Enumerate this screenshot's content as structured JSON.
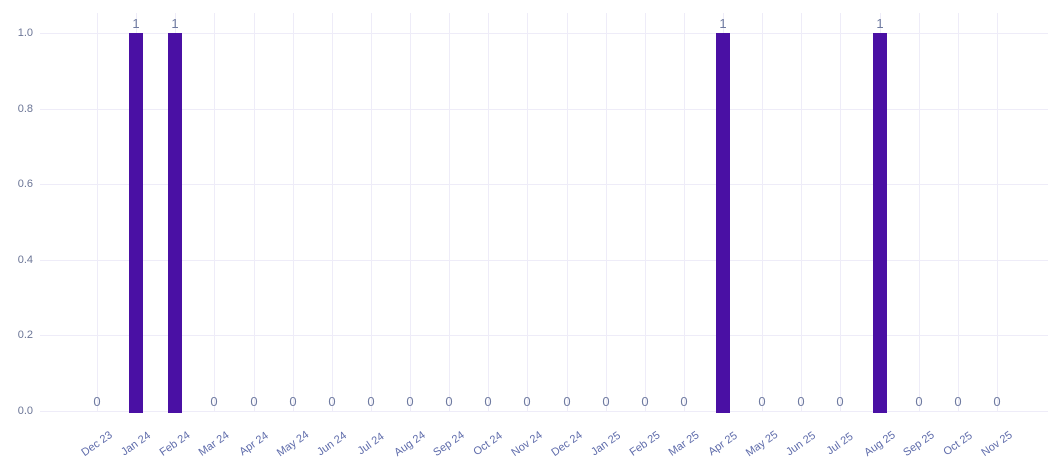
{
  "chart_data": {
    "type": "bar",
    "title": "",
    "xlabel": "",
    "ylabel": "",
    "categories": [
      "Dec 23",
      "Jan 24",
      "Feb 24",
      "Mar 24",
      "Apr 24",
      "May 24",
      "Jun 24",
      "Jul 24",
      "Aug 24",
      "Sep 24",
      "Oct 24",
      "Nov 24",
      "Dec 24",
      "Jan 25",
      "Feb 25",
      "Mar 25",
      "Apr 25",
      "May 25",
      "Jun 25",
      "Jul 25",
      "Aug 25",
      "Sep 25",
      "Oct 25",
      "Nov 25"
    ],
    "values": [
      0,
      1,
      1,
      0,
      0,
      0,
      0,
      0,
      0,
      0,
      0,
      0,
      0,
      0,
      0,
      0,
      1,
      0,
      0,
      0,
      1,
      0,
      0,
      0
    ],
    "bar_value_labels": [
      "0",
      "1",
      "1",
      "0",
      "0",
      "0",
      "0",
      "0",
      "0",
      "0",
      "0",
      "0",
      "0",
      "0",
      "0",
      "0",
      "1",
      "0",
      "0",
      "0",
      "1",
      "0",
      "0",
      "0"
    ],
    "yticks": [
      {
        "value": 0.0,
        "label": "0.0"
      },
      {
        "value": 0.2,
        "label": "0.2"
      },
      {
        "value": 0.4,
        "label": "0.4"
      },
      {
        "value": 0.6,
        "label": "0.6"
      },
      {
        "value": 0.8,
        "label": "0.8"
      },
      {
        "value": 1.0,
        "label": "1.0"
      }
    ],
    "ylim": [
      0,
      1
    ],
    "grid": true,
    "legend": false,
    "x_tick_rotation_deg": -35,
    "colors": {
      "bar": "#4a10a4",
      "grid_line": "#eeecf8",
      "y_tick_label": "#6b7596",
      "x_tick_label": "#5f6cab",
      "value_label": "#6e7aa0",
      "background": "#ffffff"
    }
  }
}
